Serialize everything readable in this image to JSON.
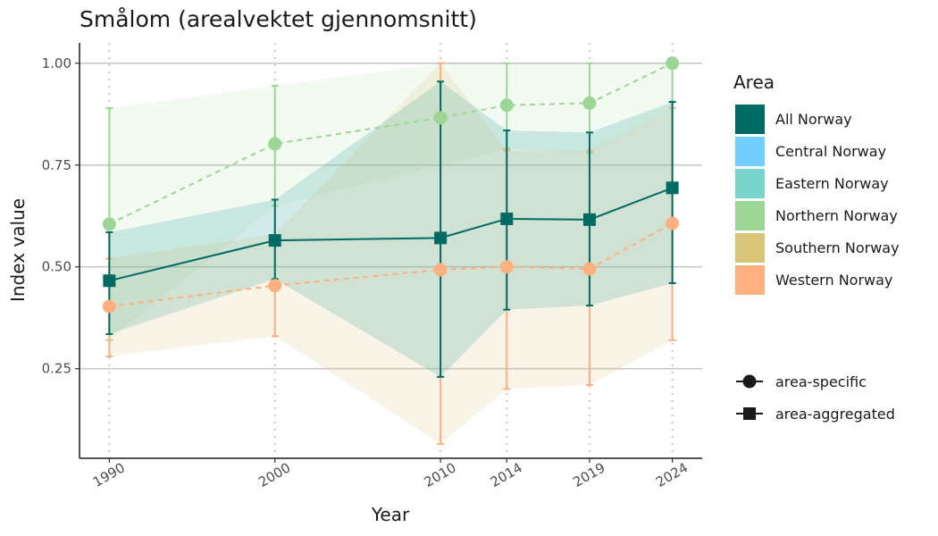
{
  "chart_data": {
    "type": "line",
    "title": "Smålom (arealvektet gjennomsnitt)",
    "xlabel": "Year",
    "ylabel": "Index value",
    "x": [
      1990,
      2000,
      2010,
      2014,
      2019,
      2024
    ],
    "x_tick_labels": [
      "1990",
      "2000",
      "2010",
      "2014",
      "2019",
      "2024"
    ],
    "y_ticks": [
      0.25,
      0.5,
      0.75,
      1.0
    ],
    "y_tick_labels": [
      "0.25",
      "0.50",
      "0.75",
      "1.00"
    ],
    "xlim": [
      1988.2,
      2025.8
    ],
    "ylim": [
      0.03,
      1.05
    ],
    "grid": "horizontal major lines; dotted vertical lines at each year",
    "legend": {
      "title": "Area",
      "placement": "right",
      "area_entries": [
        {
          "name": "All Norway",
          "color": "#006B63"
        },
        {
          "name": "Central Norway",
          "color": "#73CFFF"
        },
        {
          "name": "Eastern Norway",
          "color": "#7AD6CC"
        },
        {
          "name": "Northern Norway",
          "color": "#9CD694"
        },
        {
          "name": "Southern Norway",
          "color": "#D9C478"
        },
        {
          "name": "Western Norway",
          "color": "#FFB07F"
        }
      ],
      "shape_entries": [
        {
          "name": "area-specific",
          "shape": "circle",
          "line": "dashed"
        },
        {
          "name": "area-aggregated",
          "shape": "square",
          "line": "solid"
        }
      ]
    },
    "bands": [
      {
        "area": "Northern Norway",
        "color": "#9CD694",
        "opacity": 0.12,
        "lower": [
          0.32,
          0.65,
          0.75,
          0.79,
          0.78,
          0.89
        ],
        "upper": [
          0.89,
          0.945,
          1.0,
          1.0,
          1.0,
          1.0
        ]
      },
      {
        "area": "Eastern Norway",
        "color": "#7AD6CC",
        "opacity": 0.2,
        "lower": [
          0.335,
          0.47,
          0.23,
          0.395,
          0.405,
          0.46
        ],
        "upper": [
          0.585,
          0.665,
          0.955,
          0.835,
          0.83,
          0.905
        ]
      },
      {
        "area": "Southern Norway",
        "color": "#D9C478",
        "opacity": 0.18,
        "lower": [
          0.28,
          0.33,
          0.065,
          0.2,
          0.21,
          0.32
        ],
        "upper": [
          0.52,
          0.58,
          1.0,
          0.785,
          0.785,
          0.89
        ]
      },
      {
        "area": "All Norway",
        "color": "#006B63",
        "opacity": 0.08,
        "lower": [
          0.335,
          0.47,
          0.23,
          0.395,
          0.405,
          0.46
        ],
        "upper": [
          0.585,
          0.665,
          0.955,
          0.835,
          0.83,
          0.905
        ]
      }
    ],
    "series": [
      {
        "name": "Northern Norway",
        "color": "#9CD694",
        "shape": "circle",
        "line": "dashed",
        "values": [
          0.605,
          0.802,
          0.866,
          0.897,
          0.902,
          1.0
        ],
        "lower": [
          0.32,
          0.65,
          0.75,
          0.79,
          0.78,
          0.89
        ],
        "upper": [
          0.89,
          0.945,
          1.0,
          1.0,
          1.0,
          1.0
        ]
      },
      {
        "name": "Western Norway",
        "color": "#FFB07F",
        "shape": "circle",
        "line": "dashed",
        "values": [
          0.403,
          0.454,
          0.493,
          0.5,
          0.495,
          0.607
        ],
        "lower": [
          0.28,
          0.33,
          0.065,
          0.2,
          0.21,
          0.32
        ],
        "upper": [
          0.52,
          0.47,
          1.0,
          0.785,
          0.785,
          0.89
        ]
      },
      {
        "name": "All Norway",
        "color": "#006B63",
        "shape": "square",
        "line": "solid",
        "values": [
          0.466,
          0.565,
          0.571,
          0.618,
          0.616,
          0.694
        ],
        "lower": [
          0.335,
          0.47,
          0.23,
          0.395,
          0.405,
          0.46
        ],
        "upper": [
          0.585,
          0.665,
          0.955,
          0.835,
          0.83,
          0.905
        ]
      }
    ]
  }
}
